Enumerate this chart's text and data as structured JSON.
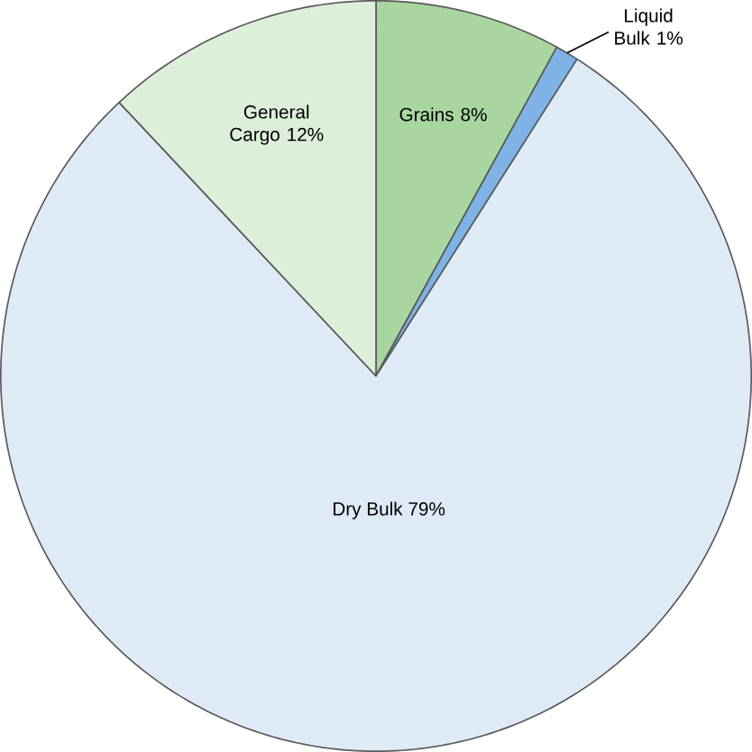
{
  "chart_data": {
    "type": "pie",
    "categories": [
      "Grains",
      "Liquid Bulk",
      "Dry Bulk",
      "General Cargo"
    ],
    "values": [
      8,
      1,
      79,
      12
    ],
    "colors": [
      "#a8d5a0",
      "#7fb2e5",
      "#deebf7",
      "#dcefd9"
    ],
    "value_labels": [
      "8%",
      "1%",
      "79%",
      "12%"
    ]
  }
}
